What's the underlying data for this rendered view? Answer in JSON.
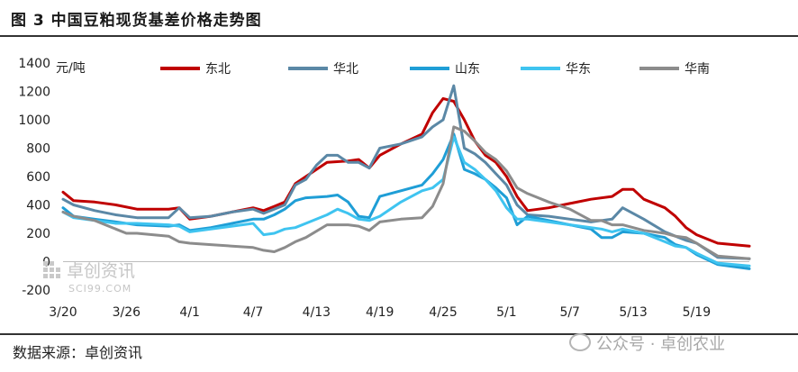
{
  "title": "图 3  中国豆粕现货基差价格走势图",
  "source": "数据来源：卓创资讯",
  "watermark": {
    "logo_text": "卓创资讯",
    "logo_url_text": "SCI99.COM",
    "right_text": "公众号 · 卓创农业"
  },
  "chart_data": {
    "type": "line",
    "ylabel": "元/吨",
    "ylim": [
      -200,
      1400
    ],
    "yticks": [
      -200,
      0,
      200,
      400,
      600,
      800,
      1000,
      1200,
      1400
    ],
    "x_tick_labels": [
      "3/20",
      "3/26",
      "4/1",
      "4/7",
      "4/13",
      "4/19",
      "4/25",
      "5/1",
      "5/7",
      "5/13",
      "5/19"
    ],
    "grid": false,
    "legend_position": "top",
    "series": [
      {
        "name": "东北",
        "color": "#c00000",
        "values": [
          [
            0,
            490
          ],
          [
            1,
            430
          ],
          [
            3,
            420
          ],
          [
            5,
            400
          ],
          [
            7,
            370
          ],
          [
            10,
            370
          ],
          [
            11,
            380
          ],
          [
            12,
            300
          ],
          [
            14,
            320
          ],
          [
            16,
            350
          ],
          [
            18,
            380
          ],
          [
            19,
            360
          ],
          [
            20,
            390
          ],
          [
            21,
            420
          ],
          [
            22,
            550
          ],
          [
            23,
            600
          ],
          [
            25,
            700
          ],
          [
            27,
            710
          ],
          [
            28,
            720
          ],
          [
            29,
            660
          ],
          [
            30,
            750
          ],
          [
            32,
            830
          ],
          [
            34,
            900
          ],
          [
            35,
            1050
          ],
          [
            36,
            1150
          ],
          [
            37,
            1130
          ],
          [
            38,
            1000
          ],
          [
            39,
            850
          ],
          [
            40,
            750
          ],
          [
            41,
            700
          ],
          [
            42,
            600
          ],
          [
            43,
            460
          ],
          [
            44,
            360
          ],
          [
            46,
            380
          ],
          [
            48,
            410
          ],
          [
            50,
            440
          ],
          [
            52,
            460
          ],
          [
            53,
            510
          ],
          [
            54,
            510
          ],
          [
            55,
            440
          ],
          [
            57,
            380
          ],
          [
            58,
            320
          ],
          [
            59,
            240
          ],
          [
            60,
            190
          ],
          [
            62,
            130
          ],
          [
            65,
            110
          ]
        ]
      },
      {
        "name": "华北",
        "color": "#5b88a6",
        "values": [
          [
            0,
            440
          ],
          [
            1,
            400
          ],
          [
            3,
            360
          ],
          [
            5,
            330
          ],
          [
            7,
            310
          ],
          [
            10,
            310
          ],
          [
            11,
            380
          ],
          [
            12,
            310
          ],
          [
            14,
            320
          ],
          [
            16,
            350
          ],
          [
            18,
            370
          ],
          [
            19,
            340
          ],
          [
            20,
            370
          ],
          [
            21,
            400
          ],
          [
            22,
            540
          ],
          [
            23,
            580
          ],
          [
            24,
            680
          ],
          [
            25,
            750
          ],
          [
            26,
            750
          ],
          [
            27,
            700
          ],
          [
            28,
            700
          ],
          [
            29,
            660
          ],
          [
            30,
            800
          ],
          [
            32,
            830
          ],
          [
            34,
            880
          ],
          [
            35,
            950
          ],
          [
            36,
            1000
          ],
          [
            37,
            1240
          ],
          [
            38,
            800
          ],
          [
            39,
            760
          ],
          [
            40,
            700
          ],
          [
            41,
            620
          ],
          [
            42,
            540
          ],
          [
            43,
            400
          ],
          [
            44,
            330
          ],
          [
            46,
            320
          ],
          [
            48,
            300
          ],
          [
            50,
            280
          ],
          [
            51,
            290
          ],
          [
            52,
            300
          ],
          [
            53,
            380
          ],
          [
            55,
            300
          ],
          [
            57,
            210
          ],
          [
            58,
            180
          ],
          [
            59,
            150
          ],
          [
            60,
            130
          ],
          [
            62,
            30
          ],
          [
            65,
            20
          ]
        ]
      },
      {
        "name": "山东",
        "color": "#1f9ed6",
        "values": [
          [
            0,
            380
          ],
          [
            1,
            320
          ],
          [
            3,
            300
          ],
          [
            5,
            280
          ],
          [
            7,
            260
          ],
          [
            10,
            250
          ],
          [
            11,
            260
          ],
          [
            12,
            220
          ],
          [
            14,
            240
          ],
          [
            16,
            270
          ],
          [
            18,
            300
          ],
          [
            19,
            300
          ],
          [
            20,
            330
          ],
          [
            21,
            370
          ],
          [
            22,
            430
          ],
          [
            23,
            450
          ],
          [
            25,
            460
          ],
          [
            26,
            470
          ],
          [
            27,
            420
          ],
          [
            28,
            320
          ],
          [
            29,
            310
          ],
          [
            30,
            460
          ],
          [
            32,
            500
          ],
          [
            34,
            540
          ],
          [
            35,
            620
          ],
          [
            36,
            720
          ],
          [
            37,
            900
          ],
          [
            38,
            650
          ],
          [
            39,
            620
          ],
          [
            40,
            580
          ],
          [
            41,
            520
          ],
          [
            42,
            450
          ],
          [
            43,
            260
          ],
          [
            44,
            320
          ],
          [
            46,
            290
          ],
          [
            48,
            260
          ],
          [
            50,
            230
          ],
          [
            51,
            170
          ],
          [
            52,
            170
          ],
          [
            53,
            210
          ],
          [
            55,
            200
          ],
          [
            57,
            170
          ],
          [
            58,
            120
          ],
          [
            59,
            100
          ],
          [
            60,
            50
          ],
          [
            62,
            -20
          ],
          [
            65,
            -50
          ]
        ]
      },
      {
        "name": "华东",
        "color": "#3fc4f0",
        "values": [
          [
            0,
            350
          ],
          [
            1,
            310
          ],
          [
            3,
            290
          ],
          [
            5,
            270
          ],
          [
            7,
            270
          ],
          [
            10,
            260
          ],
          [
            11,
            250
          ],
          [
            12,
            210
          ],
          [
            14,
            230
          ],
          [
            16,
            250
          ],
          [
            18,
            270
          ],
          [
            19,
            190
          ],
          [
            20,
            200
          ],
          [
            21,
            230
          ],
          [
            22,
            240
          ],
          [
            23,
            270
          ],
          [
            25,
            330
          ],
          [
            26,
            370
          ],
          [
            27,
            340
          ],
          [
            28,
            300
          ],
          [
            29,
            290
          ],
          [
            30,
            320
          ],
          [
            32,
            420
          ],
          [
            34,
            500
          ],
          [
            35,
            520
          ],
          [
            36,
            580
          ],
          [
            37,
            880
          ],
          [
            38,
            700
          ],
          [
            39,
            650
          ],
          [
            40,
            580
          ],
          [
            41,
            500
          ],
          [
            42,
            380
          ],
          [
            43,
            300
          ],
          [
            44,
            300
          ],
          [
            46,
            280
          ],
          [
            48,
            260
          ],
          [
            50,
            240
          ],
          [
            51,
            230
          ],
          [
            52,
            210
          ],
          [
            53,
            230
          ],
          [
            55,
            200
          ],
          [
            57,
            140
          ],
          [
            58,
            110
          ],
          [
            59,
            100
          ],
          [
            60,
            60
          ],
          [
            62,
            -10
          ],
          [
            65,
            -30
          ]
        ]
      },
      {
        "name": "华南",
        "color": "#8c8c8c",
        "values": [
          [
            0,
            350
          ],
          [
            1,
            320
          ],
          [
            3,
            290
          ],
          [
            5,
            230
          ],
          [
            6,
            200
          ],
          [
            7,
            200
          ],
          [
            10,
            180
          ],
          [
            11,
            140
          ],
          [
            12,
            130
          ],
          [
            14,
            120
          ],
          [
            16,
            110
          ],
          [
            18,
            100
          ],
          [
            19,
            80
          ],
          [
            20,
            70
          ],
          [
            21,
            100
          ],
          [
            22,
            140
          ],
          [
            23,
            170
          ],
          [
            25,
            260
          ],
          [
            27,
            260
          ],
          [
            28,
            250
          ],
          [
            29,
            220
          ],
          [
            30,
            280
          ],
          [
            32,
            300
          ],
          [
            34,
            310
          ],
          [
            35,
            390
          ],
          [
            36,
            550
          ],
          [
            37,
            950
          ],
          [
            38,
            920
          ],
          [
            39,
            850
          ],
          [
            40,
            770
          ],
          [
            41,
            720
          ],
          [
            42,
            640
          ],
          [
            43,
            520
          ],
          [
            44,
            480
          ],
          [
            46,
            420
          ],
          [
            48,
            370
          ],
          [
            50,
            290
          ],
          [
            51,
            290
          ],
          [
            52,
            260
          ],
          [
            53,
            260
          ],
          [
            55,
            220
          ],
          [
            57,
            200
          ],
          [
            58,
            180
          ],
          [
            59,
            170
          ],
          [
            60,
            130
          ],
          [
            62,
            40
          ],
          [
            65,
            20
          ]
        ]
      }
    ]
  }
}
